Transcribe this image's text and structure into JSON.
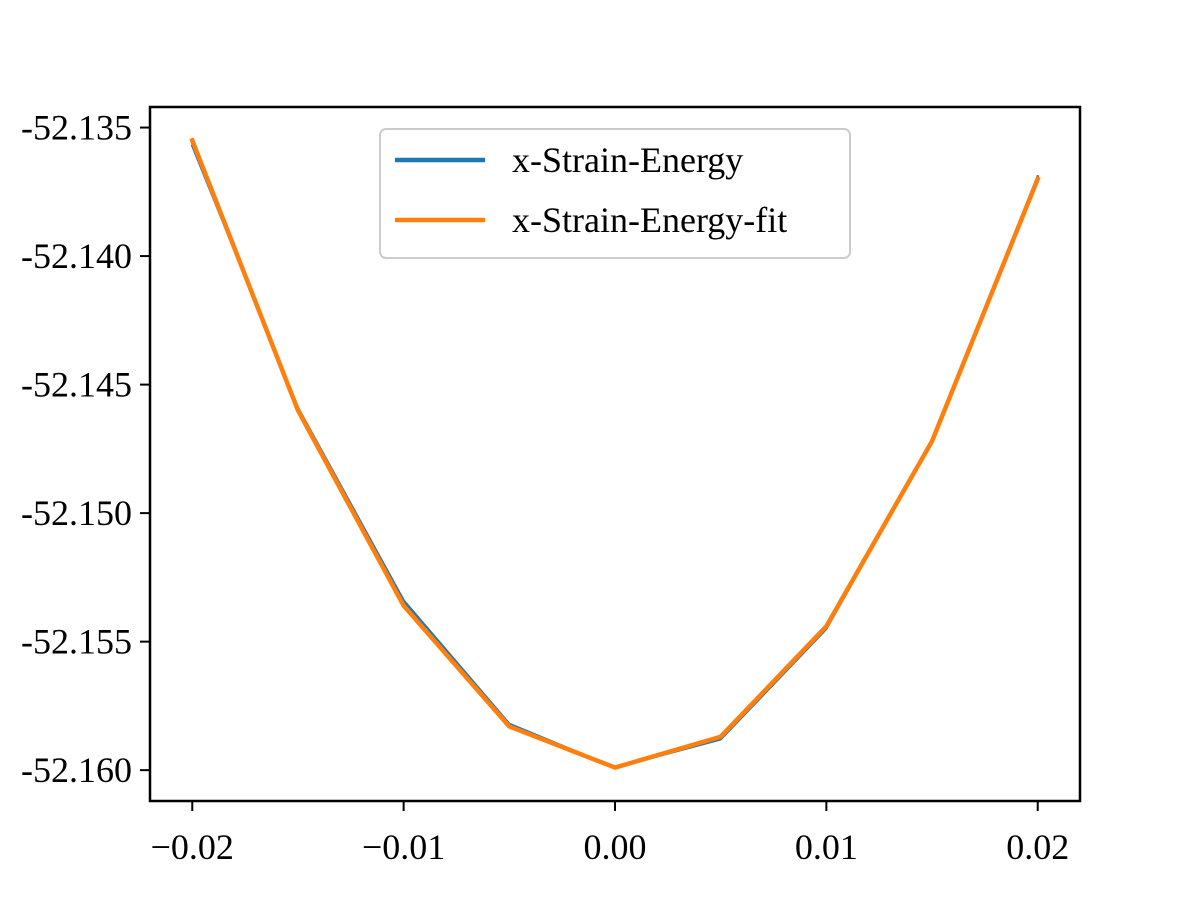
{
  "chart_data": {
    "type": "line",
    "title": "",
    "xlabel": "",
    "ylabel": "",
    "xlim": [
      -0.022,
      0.022
    ],
    "ylim": [
      -52.1612,
      -52.1342
    ],
    "xticks": [
      -0.02,
      -0.01,
      0.0,
      0.01,
      0.02
    ],
    "xtick_labels": [
      "−0.02",
      "−0.01",
      "0.00",
      "0.01",
      "0.02"
    ],
    "yticks": [
      -52.135,
      -52.14,
      -52.145,
      -52.15,
      -52.155,
      -52.16
    ],
    "ytick_labels": [
      "-52.135",
      "-52.140",
      "-52.145",
      "-52.150",
      "-52.155",
      "-52.160"
    ],
    "grid": false,
    "legend": {
      "placement": "upper center"
    },
    "series": [
      {
        "name": "x-Strain-Energy",
        "color": "#1f77b4",
        "x": [
          -0.02,
          -0.015,
          -0.01,
          -0.005,
          0.0,
          0.005,
          0.01,
          0.015,
          0.02
        ],
        "y": [
          -52.1357,
          -52.1459,
          -52.1534,
          -52.1582,
          -52.1599,
          -52.1588,
          -52.1545,
          -52.1472,
          -52.1369
        ]
      },
      {
        "name": "x-Strain-Energy-fit",
        "color": "#ff7f0e",
        "x": [
          -0.02,
          -0.015,
          -0.01,
          -0.005,
          0.0,
          0.005,
          0.01,
          0.015,
          0.02
        ],
        "y": [
          -52.1355,
          -52.146,
          -52.1536,
          -52.1583,
          -52.1599,
          -52.1587,
          -52.1544,
          -52.1472,
          -52.137
        ]
      }
    ]
  }
}
